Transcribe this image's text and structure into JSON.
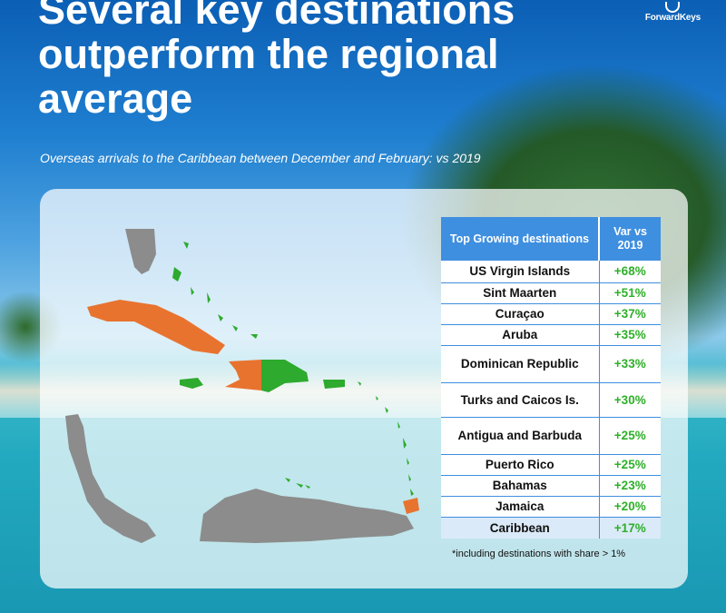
{
  "title": "Several key destinations outperform the regional average",
  "subtitle": "Overseas arrivals to the Caribbean between December and February: vs 2019",
  "logo": "ForwardKeys",
  "table": {
    "header_destination": "Top Growing destinations",
    "header_var": "Var vs 2019",
    "rows": [
      {
        "name": "US Virgin Islands",
        "value": "+68%"
      },
      {
        "name": "Sint Maarten",
        "value": "+51%"
      },
      {
        "name": "Curaçao",
        "value": "+37%"
      },
      {
        "name": "Aruba",
        "value": "+35%"
      },
      {
        "name": "Dominican Republic",
        "value": "+33%"
      },
      {
        "name": "Turks and Caicos Is.",
        "value": "+30%"
      },
      {
        "name": "Antigua and Barbuda",
        "value": "+25%"
      },
      {
        "name": "Puerto Rico",
        "value": "+25%"
      },
      {
        "name": "Bahamas",
        "value": "+23%"
      },
      {
        "name": "Jamaica",
        "value": "+20%"
      },
      {
        "name": "Caribbean",
        "value": "+17%"
      }
    ]
  },
  "footnote": "*including destinations with share > 1%",
  "colors": {
    "growth": "#2db028",
    "map_green": "#2eaa2e",
    "map_orange": "#e8732f",
    "map_gray": "#8c8c8c",
    "header_blue": "#3e8fe0"
  }
}
